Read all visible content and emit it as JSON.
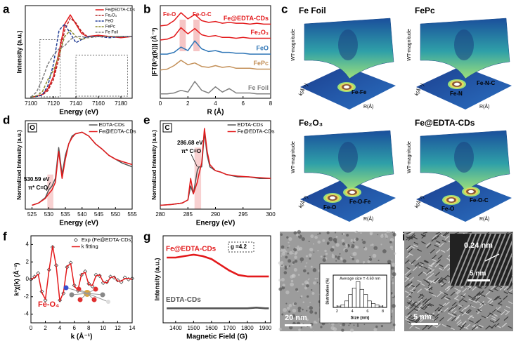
{
  "panel_labels": [
    "a",
    "b",
    "c",
    "d",
    "e",
    "f",
    "g",
    "h",
    "i"
  ],
  "chart_data": [
    {
      "type": "line",
      "x": [
        7100,
        7105,
        7110,
        7115,
        7120,
        7125,
        7130,
        7135,
        7140,
        7145,
        7150,
        7160,
        7170,
        7180,
        7190
      ],
      "xlim": [
        7095,
        7190
      ],
      "xticks": [
        7100,
        7120,
        7140,
        7160,
        7180
      ],
      "ylim": [
        0,
        1.5
      ],
      "xlabel": "Energy (eV)",
      "ylabel": "Intensity (a.u.)",
      "legend": "upper right",
      "series": [
        {
          "name": "Fe@EDTA-CDs",
          "color": "#e31a1c",
          "line": "solid",
          "values": [
            0.02,
            0.03,
            0.06,
            0.15,
            0.35,
            0.75,
            1.2,
            1.35,
            1.2,
            1.05,
            1.0,
            1.02,
            1.0,
            0.98,
            1.0
          ]
        },
        {
          "name": "Fe₂O₃",
          "color": "#b22222",
          "line": "dashed",
          "values": [
            0.02,
            0.03,
            0.05,
            0.12,
            0.3,
            0.65,
            1.1,
            1.3,
            1.22,
            1.08,
            1.0,
            1.0,
            1.0,
            0.99,
            1.0
          ]
        },
        {
          "name": "FeO",
          "color": "#1f3a93",
          "line": "dashed",
          "values": [
            0.02,
            0.03,
            0.05,
            0.2,
            0.55,
            1.1,
            1.2,
            1.05,
            0.9,
            0.95,
            1.0,
            1.0,
            0.98,
            1.0,
            1.0
          ]
        },
        {
          "name": "FePc",
          "color": "#8c8c2c",
          "line": "dashed",
          "values": [
            0.02,
            0.04,
            0.1,
            0.3,
            0.45,
            0.7,
            1.0,
            1.1,
            1.0,
            0.95,
            0.98,
            1.0,
            1.0,
            1.0,
            1.0
          ]
        },
        {
          "name": "Fe Foil",
          "color": "#7f7f7f",
          "line": "dashed",
          "values": [
            0.02,
            0.1,
            0.3,
            0.55,
            0.7,
            0.8,
            0.85,
            0.95,
            1.0,
            1.0,
            0.98,
            1.0,
            1.0,
            1.0,
            1.0
          ]
        }
      ]
    },
    {
      "type": "line",
      "x": [
        0,
        0.5,
        1,
        1.5,
        2,
        2.5,
        3,
        3.5,
        4,
        4.5,
        5,
        5.5,
        6,
        6.5,
        7,
        7.5,
        8
      ],
      "xlim": [
        0,
        8
      ],
      "xticks": [
        0,
        2,
        4,
        6,
        8
      ],
      "ylim": [
        0,
        10.5
      ],
      "xlabel": "R (Å)",
      "ylabel": "|FT(k²χ(k))| (Å⁻³)",
      "legend": "inline",
      "annotations": [
        "Fe-O",
        "Fe-O-C"
      ],
      "series": [
        {
          "name": "Fe@EDTA-CDs",
          "color": "#e31a1c",
          "line": "solid",
          "values": [
            8.2,
            8.3,
            8.8,
            9.7,
            9.0,
            9.5,
            8.8,
            8.6,
            8.7,
            8.5,
            8.6,
            8.5,
            8.5,
            8.4,
            8.5,
            8.4,
            8.4
          ]
        },
        {
          "name": "Fe₂O₃",
          "color": "#e31a1c",
          "line": "solid",
          "values": [
            6.6,
            6.7,
            7.0,
            8.0,
            7.3,
            7.9,
            7.2,
            7.0,
            7.1,
            6.9,
            6.9,
            6.8,
            6.9,
            6.8,
            6.8,
            6.8,
            6.8
          ]
        },
        {
          "name": "FeO",
          "color": "#2e75b6",
          "line": "solid",
          "values": [
            5.0,
            5.0,
            5.2,
            5.8,
            5.4,
            6.5,
            5.6,
            5.3,
            5.4,
            5.2,
            5.2,
            5.1,
            5.1,
            5.0,
            5.0,
            5.0,
            5.0
          ]
        },
        {
          "name": "FePc",
          "color": "#c4915a",
          "line": "solid",
          "values": [
            3.2,
            3.3,
            3.7,
            4.3,
            3.8,
            4.0,
            3.6,
            3.5,
            3.7,
            3.5,
            3.6,
            3.4,
            3.4,
            3.4,
            3.3,
            3.3,
            3.3
          ]
        },
        {
          "name": "Fe Foil",
          "color": "#808080",
          "line": "solid",
          "values": [
            0.5,
            0.5,
            0.6,
            0.9,
            0.7,
            1.9,
            0.9,
            0.6,
            1.3,
            0.7,
            1.1,
            0.6,
            0.6,
            0.6,
            0.5,
            0.5,
            0.5
          ]
        }
      ]
    },
    {
      "type": "line",
      "element": "O",
      "x": [
        525,
        527,
        529,
        530,
        531,
        532,
        533,
        534,
        535,
        536,
        537,
        538,
        540,
        542,
        544,
        546,
        548,
        550,
        552,
        555
      ],
      "xlim": [
        523,
        555
      ],
      "xticks": [
        525,
        530,
        535,
        540,
        545,
        550,
        555
      ],
      "ylim": [
        0,
        1.15
      ],
      "xlabel": "Energy (eV)",
      "ylabel": "Normalized Intensity (a.u.)",
      "legend": "upper right",
      "annotations": [
        "530.59 eV",
        "π* C=O"
      ],
      "series": [
        {
          "name": "EDTA-CDs",
          "color": "#555555",
          "line": "solid",
          "values": [
            0.05,
            0.08,
            0.15,
            0.25,
            0.3,
            0.4,
            0.8,
            0.45,
            0.7,
            0.85,
            0.95,
            0.98,
            1.0,
            0.95,
            0.85,
            0.78,
            0.7,
            0.65,
            0.6,
            0.55
          ]
        },
        {
          "name": "Fe@EDTA-CDs",
          "color": "#e31a1c",
          "line": "solid",
          "values": [
            0.05,
            0.08,
            0.14,
            0.2,
            0.25,
            0.35,
            0.75,
            0.4,
            0.65,
            0.85,
            0.93,
            0.98,
            1.0,
            0.95,
            0.85,
            0.78,
            0.7,
            0.65,
            0.62,
            0.58
          ]
        }
      ]
    },
    {
      "type": "line",
      "element": "C",
      "x": [
        280,
        282,
        284,
        285,
        285.5,
        286,
        286.7,
        287,
        287.5,
        288,
        288.5,
        289,
        290,
        291,
        292,
        294,
        296,
        298,
        300
      ],
      "xlim": [
        280,
        300
      ],
      "xticks": [
        280,
        285,
        290,
        295,
        300
      ],
      "ylim": [
        0,
        1.15
      ],
      "xlabel": "Energy (eV)",
      "ylabel": "Normalized Intensity (a.u.)",
      "legend": "upper right",
      "annotations": [
        "286.68 eV",
        "π* C=O"
      ],
      "series": [
        {
          "name": "EDTA-CDs",
          "color": "#555555",
          "line": "solid",
          "values": [
            0.05,
            0.06,
            0.08,
            0.12,
            0.3,
            0.2,
            0.5,
            0.55,
            0.55,
            1.0,
            0.7,
            0.55,
            0.5,
            0.48,
            0.45,
            0.42,
            0.42,
            0.4,
            0.4
          ]
        },
        {
          "name": "Fe@EDTA-CDs",
          "color": "#e31a1c",
          "line": "solid",
          "values": [
            0.05,
            0.06,
            0.08,
            0.12,
            0.4,
            0.2,
            0.35,
            0.45,
            0.6,
            1.05,
            0.75,
            0.58,
            0.5,
            0.48,
            0.45,
            0.43,
            0.42,
            0.41,
            0.4
          ]
        }
      ]
    },
    {
      "type": "line",
      "x": [
        0,
        0.5,
        1,
        1.5,
        2,
        2.5,
        3,
        3.5,
        4,
        4.5,
        5,
        5.5,
        6,
        6.5,
        7,
        7.5,
        8,
        8.5,
        9,
        9.5,
        10,
        10.5,
        11,
        11.5,
        12,
        12.5,
        13,
        13.5,
        14
      ],
      "xlim": [
        0,
        14
      ],
      "xticks": [
        0,
        2,
        4,
        6,
        8,
        10,
        12,
        14
      ],
      "ylim": [
        -5,
        5
      ],
      "yticks": [
        -4,
        -2,
        0,
        2,
        4
      ],
      "xlabel": "k (Å⁻¹)",
      "ylabel": "k²χ(k) (Å⁻²)",
      "legend": "upper right",
      "annotations": [
        "Fe-O₄"
      ],
      "series": [
        {
          "name": "Exp (Fe@EDTA-CDs)",
          "color": "#333333",
          "marker": "diamond",
          "values": [
            0,
            0.3,
            0.7,
            -1.4,
            -2.4,
            1.1,
            3.7,
            1.6,
            -2.4,
            -1.6,
            1.4,
            1.9,
            -0.7,
            -1.3,
            0.5,
            0.9,
            -0.5,
            -0.8,
            0.5,
            0.4,
            -0.4,
            -0.3,
            0.3,
            0.2,
            -0.1,
            -0.3,
            0.2,
            0,
            0.1
          ]
        },
        {
          "name": "k fitting",
          "color": "#e31a1c",
          "line": "solid",
          "values": [
            0,
            0.2,
            0.6,
            -1.5,
            -2.3,
            1.0,
            3.8,
            1.5,
            -2.5,
            -1.5,
            1.5,
            1.8,
            -0.8,
            -1.2,
            0.6,
            0.8,
            -0.6,
            -0.7,
            0.4,
            0.5,
            -0.3,
            -0.4,
            0.2,
            0.3,
            -0.2,
            -0.2,
            0.1,
            0.1,
            0
          ]
        }
      ]
    },
    {
      "type": "line",
      "x": [
        1350,
        1400,
        1450,
        1500,
        1550,
        1600,
        1650,
        1700,
        1750,
        1800,
        1850,
        1900,
        1920
      ],
      "xlim": [
        1330,
        1930
      ],
      "xticks": [
        1400,
        1500,
        1600,
        1700,
        1800,
        1900
      ],
      "ylim": [
        4,
        10
      ],
      "xlabel": "Magnetic Field (G)",
      "ylabel": "Intensity (a.u.)",
      "legend": "inline-left",
      "annotations": [
        "g =4.2"
      ],
      "series": [
        {
          "name": "Fe@EDTA-CDs",
          "color": "#e31a1c",
          "line": "noisy",
          "values": [
            8.5,
            8.5,
            8.6,
            8.7,
            8.6,
            8.4,
            8.0,
            7.6,
            7.3,
            7.2,
            7.2,
            7.2,
            7.2
          ]
        },
        {
          "name": "EDTA-CDs",
          "color": "#555555",
          "line": "noisy",
          "values": [
            5.0,
            5.0,
            5.0,
            5.0,
            5.0,
            5.0,
            5.0,
            5.0,
            5.0,
            5.0,
            5.05,
            5.0,
            5.0
          ]
        }
      ]
    },
    {
      "type": "histogram",
      "title": "Average size = 4.60 nm",
      "bins": [
        2,
        2.5,
        3,
        3.5,
        4,
        4.5,
        5,
        5.5,
        6,
        6.5,
        7,
        7.5,
        8
      ],
      "values": [
        1,
        2,
        5,
        10,
        15,
        20,
        14,
        10,
        5,
        3,
        2,
        1
      ],
      "color": "#ffffff",
      "xlim": [
        1.5,
        8.5
      ],
      "xticks": [
        2,
        4,
        6,
        8
      ],
      "ylim": [
        0,
        25
      ],
      "xlabel": "Size (nm)",
      "ylabel": "Distribution (%)"
    }
  ],
  "wavelet_panel": {
    "titles": [
      "Fe Foil",
      "FePc",
      "Fe₂O₃",
      "Fe@EDTA-CDs"
    ],
    "z_label": "WT-magnitude",
    "k_label": "k(Å⁻¹)",
    "r_label": "R(Å)",
    "peaks": [
      [
        "Fe-Fe"
      ],
      [
        "Fe-N",
        "Fe-N-C"
      ],
      [
        "Fe-O",
        "Fe-O-Fe"
      ],
      [
        "Fe-O",
        "Fe-O-C"
      ]
    ]
  },
  "tem_images": {
    "h_scale": "20 nm",
    "i_scale": "5 nm",
    "inset_spacing": "0.24 nm",
    "inset_scale": "5 nm"
  }
}
